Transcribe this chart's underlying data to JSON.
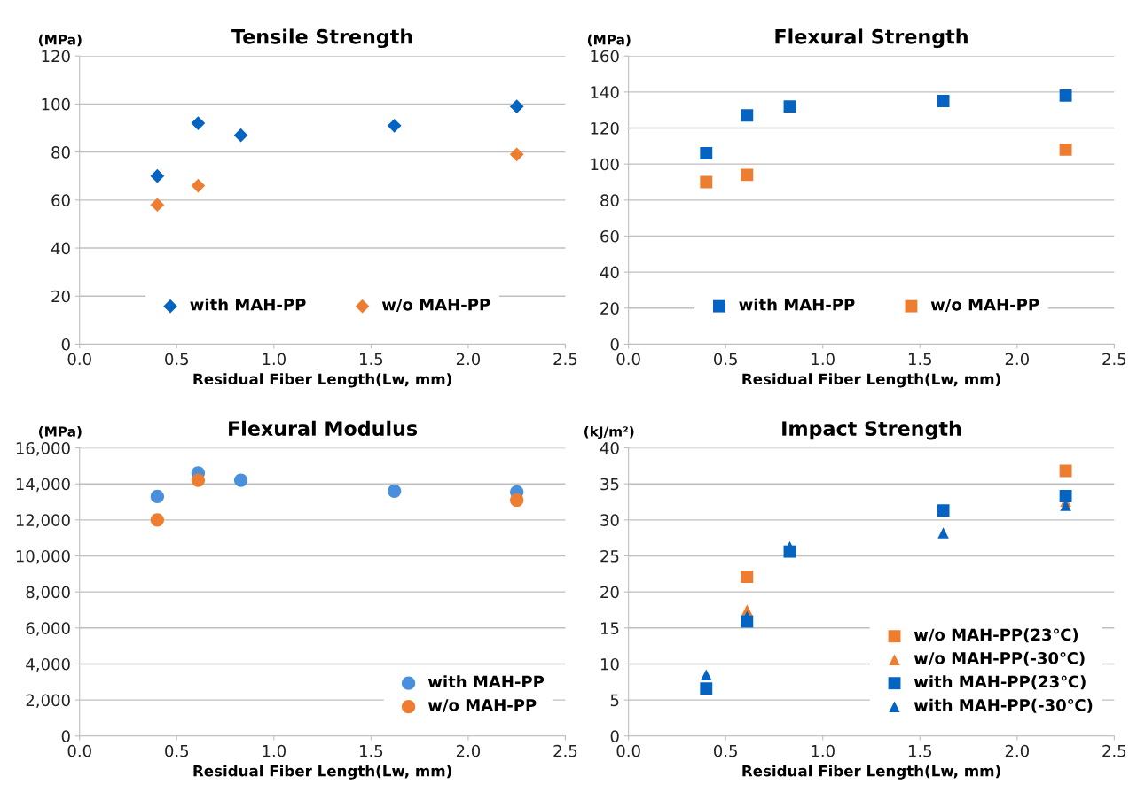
{
  "chart_data": [
    {
      "type": "scatter",
      "title": "Tensile Strength",
      "ylabel": "(MPa)",
      "xlabel": "Residual Fiber Length(Lw, mm)",
      "xlim": [
        0,
        2.5
      ],
      "xticks": [
        {
          "value": 0,
          "label": "0.0"
        },
        0.5,
        {
          "value": 1,
          "label": "1.0"
        },
        1.5,
        {
          "value": 2,
          "label": "2.0"
        },
        2.5
      ],
      "ylim": [
        0,
        120
      ],
      "yticks": [
        0,
        20,
        40,
        60,
        80,
        100,
        120
      ],
      "grid": "y",
      "legend": "bottom",
      "marker": "diamond",
      "series": [
        {
          "name": "with MAH-PP",
          "color": "#0563c1",
          "x": [
            0.4,
            0.61,
            0.83,
            1.62,
            2.25
          ],
          "values": [
            70,
            92,
            87,
            91,
            99
          ]
        },
        {
          "name": "w/o MAH-PP",
          "color": "#ed7d31",
          "x": [
            0.4,
            0.61,
            2.25
          ],
          "values": [
            58,
            66,
            79
          ]
        }
      ]
    },
    {
      "type": "scatter",
      "title": "Flexural Strength",
      "ylabel": "(MPa)",
      "xlabel": "Residual Fiber Length(Lw, mm)",
      "xlim": [
        0,
        2.5
      ],
      "xticks": [
        {
          "value": 0,
          "label": "0.0"
        },
        0.5,
        {
          "value": 1,
          "label": "1.0"
        },
        1.5,
        {
          "value": 2,
          "label": "2.0"
        },
        2.5
      ],
      "ylim": [
        0,
        160
      ],
      "yticks": [
        0,
        20,
        40,
        60,
        80,
        100,
        120,
        140,
        160
      ],
      "grid": "y",
      "legend": "bottom",
      "marker": "square",
      "series": [
        {
          "name": "with MAH-PP",
          "color": "#0563c1",
          "x": [
            0.4,
            0.61,
            0.83,
            1.62,
            2.25
          ],
          "values": [
            106,
            127,
            132,
            135,
            138
          ]
        },
        {
          "name": "w/o MAH-PP",
          "color": "#ed7d31",
          "x": [
            0.4,
            0.61,
            2.25
          ],
          "values": [
            90,
            94,
            108
          ]
        }
      ]
    },
    {
      "type": "scatter",
      "title": "Flexural Modulus",
      "ylabel": "(MPa)",
      "xlabel": "Residual Fiber Length(Lw, mm)",
      "xlim": [
        0,
        2.5
      ],
      "xticks": [
        {
          "value": 0,
          "label": "0.0"
        },
        0.5,
        {
          "value": 1,
          "label": "1.0"
        },
        1.5,
        {
          "value": 2,
          "label": "2.0"
        },
        2.5
      ],
      "ylim": [
        0,
        16000
      ],
      "yticks": [
        0,
        {
          "value": 2000,
          "label": "2,000"
        },
        {
          "value": 4000,
          "label": "4,000"
        },
        {
          "value": 6000,
          "label": "6,000"
        },
        {
          "value": 8000,
          "label": "8,000"
        },
        {
          "value": 10000,
          "label": "10,000"
        },
        {
          "value": 12000,
          "label": "12,000"
        },
        {
          "value": 14000,
          "label": "14,000"
        },
        {
          "value": 16000,
          "label": "16,000"
        }
      ],
      "grid": "y",
      "legend": "lower right",
      "marker": "circle",
      "series": [
        {
          "name": "with MAH-PP",
          "color": "#4a8fdb",
          "x": [
            0.4,
            0.61,
            0.83,
            1.62,
            2.25
          ],
          "values": [
            13300,
            14600,
            14200,
            13600,
            13550
          ]
        },
        {
          "name": "w/o MAH-PP",
          "color": "#ed7d31",
          "x": [
            0.4,
            0.61,
            2.25
          ],
          "values": [
            12000,
            14200,
            13100
          ]
        }
      ]
    },
    {
      "type": "scatter",
      "title": "Impact Strength",
      "ylabel": "(kJ/m²)",
      "xlabel": "Residual Fiber Length(Lw, mm)",
      "xlim": [
        0,
        2.5
      ],
      "xticks": [
        {
          "value": 0,
          "label": "0.0"
        },
        0.5,
        {
          "value": 1,
          "label": "1.0"
        },
        1.5,
        {
          "value": 2,
          "label": "2.0"
        },
        2.5
      ],
      "ylim": [
        0,
        40
      ],
      "yticks": [
        0,
        5,
        10,
        15,
        20,
        25,
        30,
        35,
        40
      ],
      "grid": "y",
      "legend": "lower right",
      "series": [
        {
          "name": "w/o MAH-PP(23℃)",
          "color": "#ed7d31",
          "marker": "square",
          "x": [
            0.61,
            2.25
          ],
          "values": [
            22.1,
            36.8
          ]
        },
        {
          "name": "w/o MAH-PP(-30℃)",
          "color": "#ed7d31",
          "marker": "triangle",
          "x": [
            0.61,
            2.25
          ],
          "values": [
            17.5,
            32.6
          ]
        },
        {
          "name": "with MAH-PP(23℃)",
          "color": "#0563c1",
          "marker": "square",
          "x": [
            0.4,
            0.61,
            0.83,
            1.62,
            2.25
          ],
          "values": [
            6.6,
            15.9,
            25.6,
            31.3,
            33.3
          ]
        },
        {
          "name": "with MAH-PP(-30℃)",
          "color": "#0563c1",
          "marker": "triangle",
          "x": [
            0.4,
            0.61,
            0.83,
            1.62,
            2.25
          ],
          "values": [
            8.5,
            16.6,
            26.3,
            28.2,
            32.0
          ]
        }
      ]
    }
  ]
}
